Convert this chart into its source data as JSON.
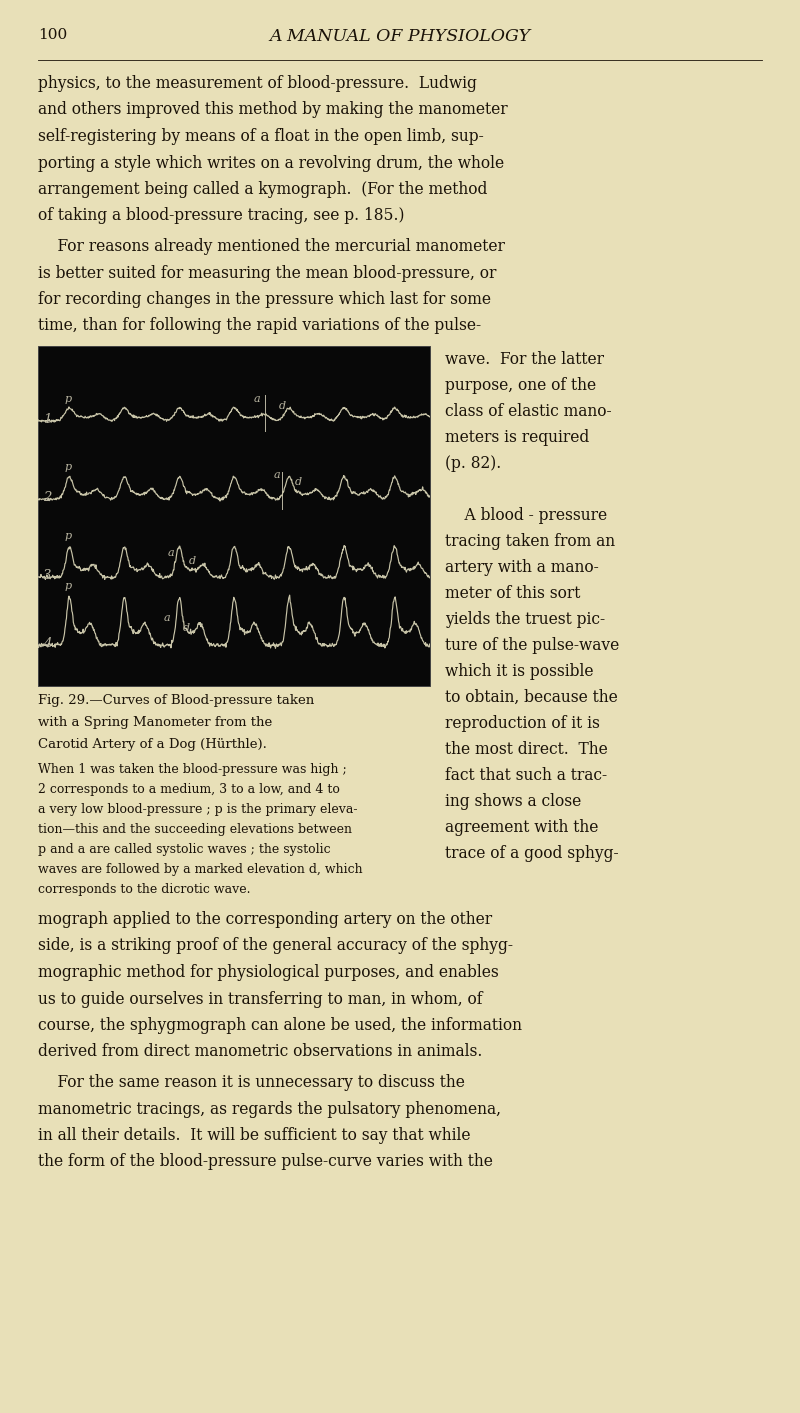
{
  "page_number": "100",
  "header_title": "A MANUAL OF PHYSIOLOGY",
  "background_color": "#e8e0b8",
  "text_color": "#1a1208",
  "image_bg": "#080808",
  "para1_lines": [
    "physics, to the measurement of blood-pressure.  Ludwig",
    "and others improved this method by making the manometer",
    "self-registering by means of a float in the open limb, sup-",
    "porting a style which writes on a revolving drum, the whole",
    "arrangement being called a kymograph.  (For the method",
    "of taking a blood-pressure tracing, see p. 185.)"
  ],
  "para2_lines": [
    "    For reasons already mentioned the mercurial manometer",
    "is better suited for measuring the mean blood-pressure, or",
    "for recording changes in the pressure which last for some",
    "time, than for following the rapid variations of the pulse-"
  ],
  "right_col_lines": [
    "wave.  For the latter",
    "purpose, one of the",
    "class of elastic mano-",
    "meters is required",
    "(p. 82).",
    "",
    "    A blood - pressure",
    "tracing taken from an",
    "artery with a mano-",
    "meter of this sort",
    "yields the truest pic-",
    "ture of the pulse-wave",
    "which it is possible",
    "to obtain, because the",
    "reproduction of it is",
    "the most direct.  The",
    "fact that such a trac-",
    "ing shows a close",
    "agreement with the",
    "trace of a good sphyg-"
  ],
  "fig_cap_title_lines": [
    "Fig. 29.—Curves of Blood-pressure taken",
    "with a Spring Manometer from the",
    "Carotid Artery of a Dog (Hürthle)."
  ],
  "fig_cap_detail_lines": [
    "When 1 was taken the blood-pressure was high ;",
    "2 corresponds to a medium, 3 to a low, and 4 to",
    "a very low blood-pressure ; p is the primary eleva-",
    "tion—this and the succeeding elevations between",
    "p and a are called systolic waves ; the systolic",
    "waves are followed by a marked elevation d, which",
    "corresponds to the dicrotic wave."
  ],
  "bottom_para1_lines": [
    "mograph applied to the corresponding artery on the other",
    "side, is a striking proof of the general accuracy of the sphyg-",
    "mographic method for physiological purposes, and enables",
    "us to guide ourselves in transferring to man, in whom, of",
    "course, the sphygmograph can alone be used, the information",
    "derived from direct manometric observations in animals."
  ],
  "bottom_para2_lines": [
    "    For the same reason it is unnecessary to discuss the",
    "manometric tracings, as regards the pulsatory phenomena,",
    "in all their details.  It will be sufficient to say that while",
    "the form of the blood-pressure pulse-curve varies with the"
  ]
}
